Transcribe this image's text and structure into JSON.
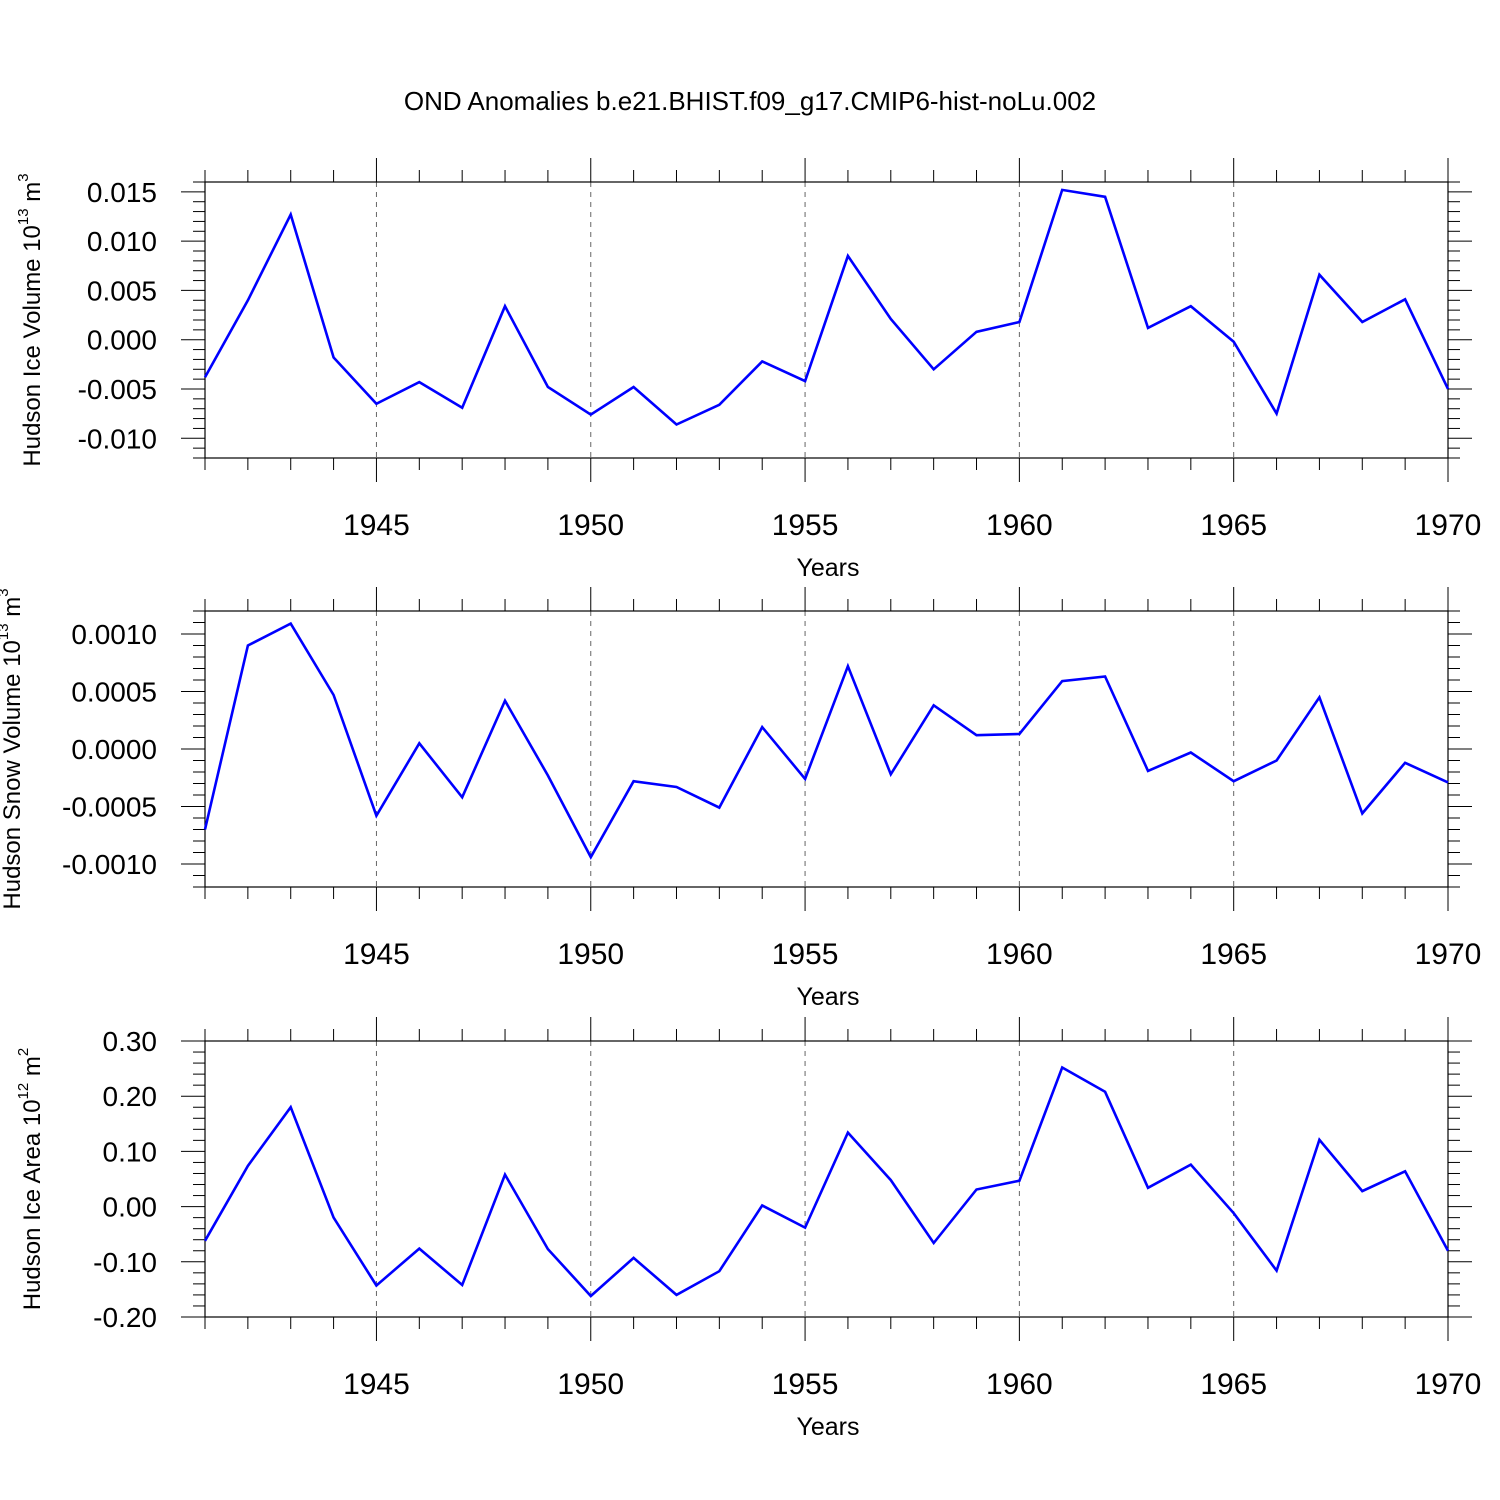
{
  "title": "OND Anomalies b.e21.BHIST.f09_g17.CMIP6-hist-noLu.002",
  "line_color": "#0000ff",
  "chart_data": [
    {
      "type": "line",
      "ylabel": {
        "main": "Hudson Ice Volume 10",
        "exp": "13",
        "unit": " m",
        "unit_exp": "3"
      },
      "xlabel": "Years",
      "xlim": [
        1941,
        1970
      ],
      "ylim": [
        -0.012,
        0.016
      ],
      "yticks": [
        -0.01,
        -0.005,
        0.0,
        0.005,
        0.01,
        0.015
      ],
      "ytick_labels": [
        "-0.010",
        "-0.005",
        "0.000",
        "0.005",
        "0.010",
        "0.015"
      ],
      "xticks": [
        1945,
        1950,
        1955,
        1960,
        1965,
        1970
      ],
      "xtick_labels": [
        "1945",
        "1950",
        "1955",
        "1960",
        "1965",
        "1970"
      ],
      "x": [
        1941,
        1942,
        1943,
        1944,
        1945,
        1946,
        1947,
        1948,
        1949,
        1950,
        1951,
        1952,
        1953,
        1954,
        1955,
        1956,
        1957,
        1958,
        1959,
        1960,
        1961,
        1962,
        1963,
        1964,
        1965,
        1966,
        1967,
        1968,
        1969,
        1970
      ],
      "y": [
        -0.0038,
        0.004,
        0.0127,
        -0.0018,
        -0.0065,
        -0.0043,
        -0.0069,
        0.0034,
        -0.0048,
        -0.0076,
        -0.0048,
        -0.0086,
        -0.0066,
        -0.0022,
        -0.0042,
        0.0085,
        0.0021,
        -0.003,
        0.0008,
        0.0018,
        0.0152,
        0.0145,
        0.0012,
        0.0034,
        -0.0002,
        -0.0075,
        0.0066,
        0.0018,
        0.0041,
        -0.005
      ]
    },
    {
      "type": "line",
      "ylabel": {
        "main": "Hudson Snow Volume 10",
        "exp": "13",
        "unit": " m",
        "unit_exp": "3"
      },
      "xlabel": "Years",
      "xlim": [
        1941,
        1970
      ],
      "ylim": [
        -0.0012,
        0.0012
      ],
      "yticks": [
        -0.001,
        -0.0005,
        0.0,
        0.0005,
        0.001
      ],
      "ytick_labels": [
        "-0.0010",
        "-0.0005",
        "0.0000",
        "0.0005",
        "0.0010"
      ],
      "xticks": [
        1945,
        1950,
        1955,
        1960,
        1965,
        1970
      ],
      "xtick_labels": [
        "1945",
        "1950",
        "1955",
        "1960",
        "1965",
        "1970"
      ],
      "x": [
        1941,
        1942,
        1943,
        1944,
        1945,
        1946,
        1947,
        1948,
        1949,
        1950,
        1951,
        1952,
        1953,
        1954,
        1955,
        1956,
        1957,
        1958,
        1959,
        1960,
        1961,
        1962,
        1963,
        1964,
        1965,
        1966,
        1967,
        1968,
        1969,
        1970
      ],
      "y": [
        -0.0007,
        0.0009,
        0.00109,
        0.00047,
        -0.00058,
        5e-05,
        -0.00042,
        0.00042,
        -0.00023,
        -0.00094,
        -0.00028,
        -0.00033,
        -0.00051,
        0.00019,
        -0.00026,
        0.00072,
        -0.00022,
        0.00038,
        0.00012,
        0.00013,
        0.00059,
        0.00063,
        -0.00019,
        -3e-05,
        -0.00028,
        -0.0001,
        0.00045,
        -0.00056,
        -0.00012,
        -0.00029
      ]
    },
    {
      "type": "line",
      "ylabel": {
        "main": "Hudson Ice Area 10",
        "exp": "12",
        "unit": " m",
        "unit_exp": "2"
      },
      "xlabel": "Years",
      "xlim": [
        1941,
        1970
      ],
      "ylim": [
        -0.2,
        0.3
      ],
      "yticks": [
        -0.2,
        -0.1,
        0.0,
        0.1,
        0.2,
        0.3
      ],
      "ytick_labels": [
        "-0.20",
        "-0.10",
        "0.00",
        "0.10",
        "0.20",
        "0.30"
      ],
      "xticks": [
        1945,
        1950,
        1955,
        1960,
        1965,
        1970
      ],
      "xtick_labels": [
        "1945",
        "1950",
        "1955",
        "1960",
        "1965",
        "1970"
      ],
      "x": [
        1941,
        1942,
        1943,
        1944,
        1945,
        1946,
        1947,
        1948,
        1949,
        1950,
        1951,
        1952,
        1953,
        1954,
        1955,
        1956,
        1957,
        1958,
        1959,
        1960,
        1961,
        1962,
        1963,
        1964,
        1965,
        1966,
        1967,
        1968,
        1969,
        1970
      ],
      "y": [
        -0.062,
        0.074,
        0.18,
        -0.02,
        -0.143,
        -0.076,
        -0.142,
        0.058,
        -0.077,
        -0.162,
        -0.093,
        -0.16,
        -0.117,
        0.002,
        -0.038,
        0.134,
        0.048,
        -0.066,
        0.031,
        0.047,
        0.252,
        0.208,
        0.034,
        0.076,
        -0.012,
        -0.116,
        0.121,
        0.028,
        0.064,
        -0.08
      ]
    }
  ]
}
